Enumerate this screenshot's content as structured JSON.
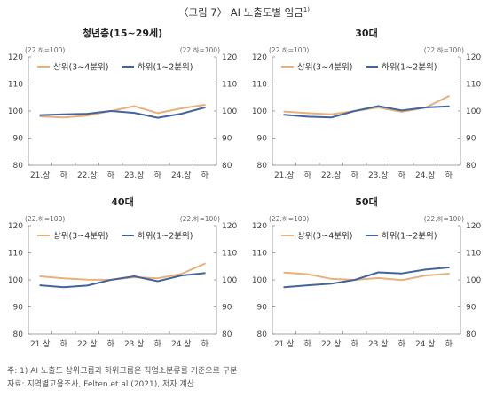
{
  "figure": {
    "title": "〈그림 7〉 AI 노출도별 임금",
    "title_sup": "1)"
  },
  "footnotes": {
    "note": "주: 1) AI 노출도 상위그룹과 하위그룹은 직업소분류를 기준으로 구분",
    "source": "자료: 지역별고용조사, Felten et al.(2021), 저자 계산"
  },
  "colors": {
    "upper": "#E8B07A",
    "lower": "#44649E",
    "axis": "#888888"
  },
  "chart_data": [
    {
      "type": "line",
      "title": "청년층(15~29세)",
      "unit_left": "(22.하=100)",
      "unit_right": "(22.하=100)",
      "categories": [
        "21.상",
        "하",
        "22.상",
        "하",
        "23.상",
        "하",
        "24.상",
        "하"
      ],
      "ylim": [
        80,
        120
      ],
      "yticks": [
        80,
        90,
        100,
        110,
        120
      ],
      "legend_position": "top-left",
      "series": [
        {
          "name": "상위(3~4분위)",
          "values": [
            98.0,
            97.6,
            98.3,
            100.0,
            101.8,
            99.2,
            101.0,
            102.3
          ]
        },
        {
          "name": "하위(1~2분위)",
          "values": [
            98.5,
            98.8,
            99.0,
            100.0,
            99.3,
            97.5,
            99.0,
            101.3
          ]
        }
      ]
    },
    {
      "type": "line",
      "title": "30대",
      "unit_left": "(22.하=100)",
      "unit_right": "(22.하=100)",
      "categories": [
        "21.상",
        "하",
        "22.상",
        "하",
        "23.상",
        "하",
        "24.상",
        "하"
      ],
      "ylim": [
        80,
        120
      ],
      "yticks": [
        80,
        90,
        100,
        110,
        120
      ],
      "legend_position": "top-left",
      "series": [
        {
          "name": "상위(3~4분위)",
          "values": [
            99.8,
            99.2,
            98.8,
            100.0,
            101.3,
            99.7,
            101.2,
            105.5
          ]
        },
        {
          "name": "하위(1~2분위)",
          "values": [
            98.6,
            97.9,
            97.6,
            100.0,
            101.8,
            100.2,
            101.3,
            101.7
          ]
        }
      ]
    },
    {
      "type": "line",
      "title": "40대",
      "unit_left": "(22.하=100)",
      "unit_right": "(22.하=100)",
      "categories": [
        "21.상",
        "하",
        "22.상",
        "하",
        "23.상",
        "하",
        "24.상",
        "하"
      ],
      "ylim": [
        80,
        120
      ],
      "yticks": [
        80,
        90,
        100,
        110,
        120
      ],
      "legend_position": "top-left",
      "series": [
        {
          "name": "상위(3~4분위)",
          "values": [
            101.3,
            100.6,
            100.1,
            100.0,
            101.0,
            100.6,
            102.2,
            106.0
          ]
        },
        {
          "name": "하위(1~2분위)",
          "values": [
            98.0,
            97.3,
            97.9,
            100.0,
            101.3,
            99.5,
            101.6,
            102.5
          ]
        }
      ]
    },
    {
      "type": "line",
      "title": "50대",
      "unit_left": "(22.하=100)",
      "unit_right": "(22.하=100)",
      "categories": [
        "21.상",
        "하",
        "22.상",
        "하",
        "23.상",
        "하",
        "24.상",
        "하"
      ],
      "ylim": [
        80,
        120
      ],
      "yticks": [
        80,
        90,
        100,
        110,
        120
      ],
      "legend_position": "top-left",
      "series": [
        {
          "name": "상위(3~4분위)",
          "values": [
            102.7,
            102.1,
            100.4,
            100.0,
            100.7,
            99.9,
            101.6,
            102.3
          ]
        },
        {
          "name": "하위(1~2분위)",
          "values": [
            97.3,
            98.0,
            98.6,
            100.0,
            102.8,
            102.4,
            103.8,
            104.6
          ]
        }
      ]
    }
  ]
}
